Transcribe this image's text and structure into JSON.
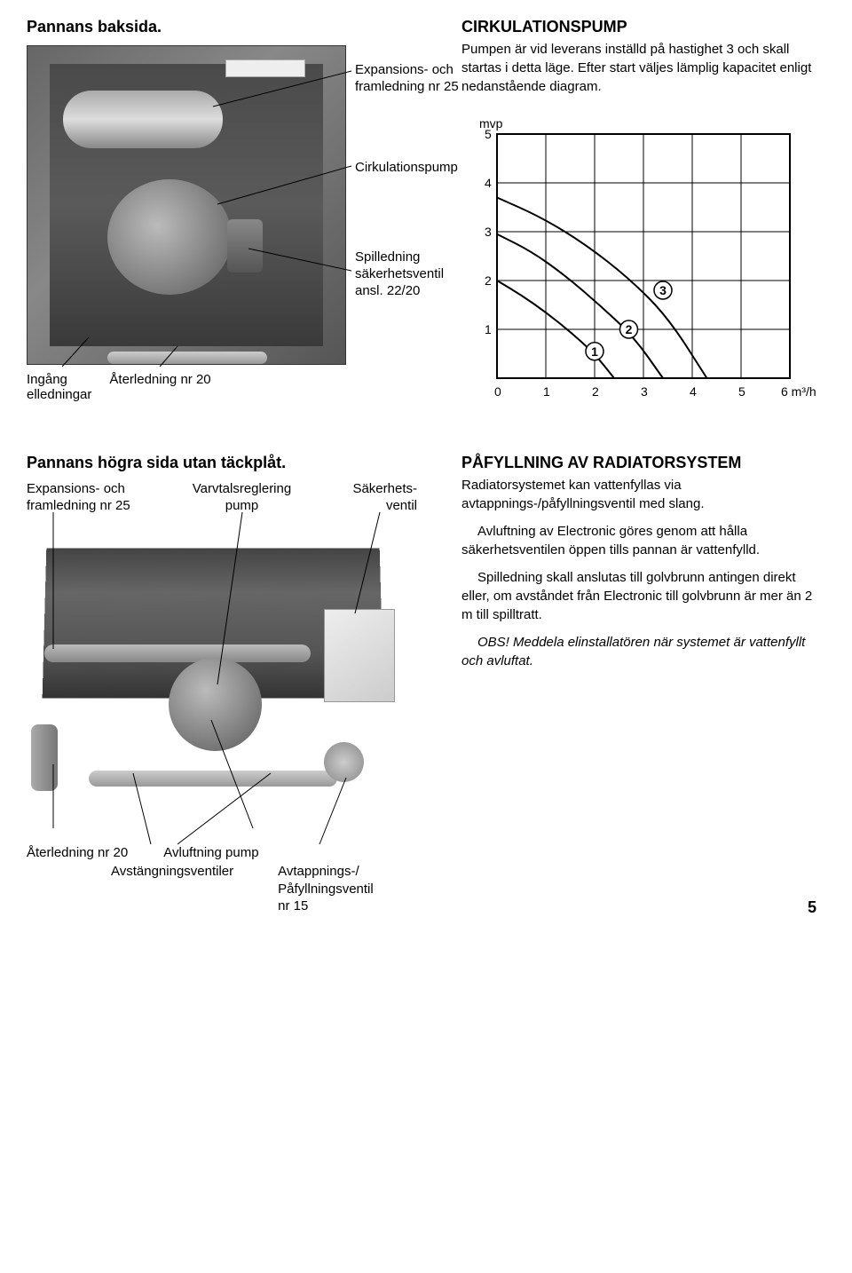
{
  "topLeft": {
    "title": "Pannans baksida.",
    "label_expansion": "Expansions- och\nframledning nr 25",
    "label_cirkpump": "Cirkulationspump",
    "label_spilledning": "Spilledning\nsäkerhetsventil\nansl. 22/20",
    "label_ingang": "Ingång\nelledningar",
    "label_aterledning": "Återledning nr 20"
  },
  "topRight": {
    "heading": "CIRKULATIONSPUMP",
    "p1": "Pumpen är vid leverans inställd på hastighet 3 och skall startas i detta läge. Efter start väljes lämplig kapacitet enligt nedanstående diagram."
  },
  "chart": {
    "type": "line",
    "ylabel": "mvp",
    "xlabel_unit": "m³/h",
    "xlim": [
      0,
      6
    ],
    "ylim": [
      0,
      5
    ],
    "xtick_step": 1,
    "ytick_step": 1,
    "grid_color": "#000000",
    "background_color": "#ffffff",
    "curve_color": "#000000",
    "curve_width": 2,
    "xticks": [
      "0",
      "1",
      "2",
      "3",
      "4",
      "5",
      "6"
    ],
    "yticks": [
      "1",
      "2",
      "3",
      "4",
      "5"
    ],
    "series": [
      {
        "name": "1",
        "bubble": "1",
        "points": [
          [
            0,
            2.0
          ],
          [
            0.5,
            1.7
          ],
          [
            1.0,
            1.35
          ],
          [
            1.5,
            0.95
          ],
          [
            2.0,
            0.5
          ],
          [
            2.4,
            0.0
          ]
        ]
      },
      {
        "name": "2",
        "bubble": "2",
        "points": [
          [
            0,
            2.95
          ],
          [
            0.7,
            2.6
          ],
          [
            1.4,
            2.1
          ],
          [
            2.1,
            1.5
          ],
          [
            2.8,
            0.85
          ],
          [
            3.4,
            0.0
          ]
        ]
      },
      {
        "name": "3",
        "bubble": "3",
        "points": [
          [
            0,
            3.7
          ],
          [
            0.9,
            3.3
          ],
          [
            1.8,
            2.75
          ],
          [
            2.7,
            2.05
          ],
          [
            3.5,
            1.25
          ],
          [
            4.3,
            0.0
          ]
        ]
      }
    ],
    "bubble_positions": {
      "1": [
        2.0,
        0.55
      ],
      "2": [
        2.7,
        1.0
      ],
      "3": [
        3.4,
        1.8
      ]
    },
    "title_fontsize": 14
  },
  "bottomLeft": {
    "title": "Pannans högra sida utan täckplåt.",
    "top_label_1": "Expansions- och\nframledning nr 25",
    "top_label_2": "Varvtalsreglering\npump",
    "top_label_3": "Säkerhets-\nventil",
    "bot_label_1": "Återledning nr 20",
    "bot_label_2": "Avstängningsventiler",
    "bot_label_3": "Avluftning pump",
    "bot_label_4": "Avtappnings-/\nPåfyllningsventil\nnr 15"
  },
  "bottomRight": {
    "heading": "PÅFYLLNING AV RADIATORSYSTEM",
    "p1": "Radiatorsystemet kan vattenfyllas via avtappnings-/påfyllningsventil med slang.",
    "p2": "Avluftning av Electronic göres genom att hålla säkerhetsventilen öppen tills pannan är vattenfylld.",
    "p3": "Spilledning skall anslutas till golvbrunn antingen direkt eller, om avståndet från Electronic till golvbrunn är mer än 2 m till spilltratt.",
    "p4_italic": "OBS! Meddela elinstallatören när systemet är vattenfyllt och avluftat."
  },
  "page_number": "5"
}
